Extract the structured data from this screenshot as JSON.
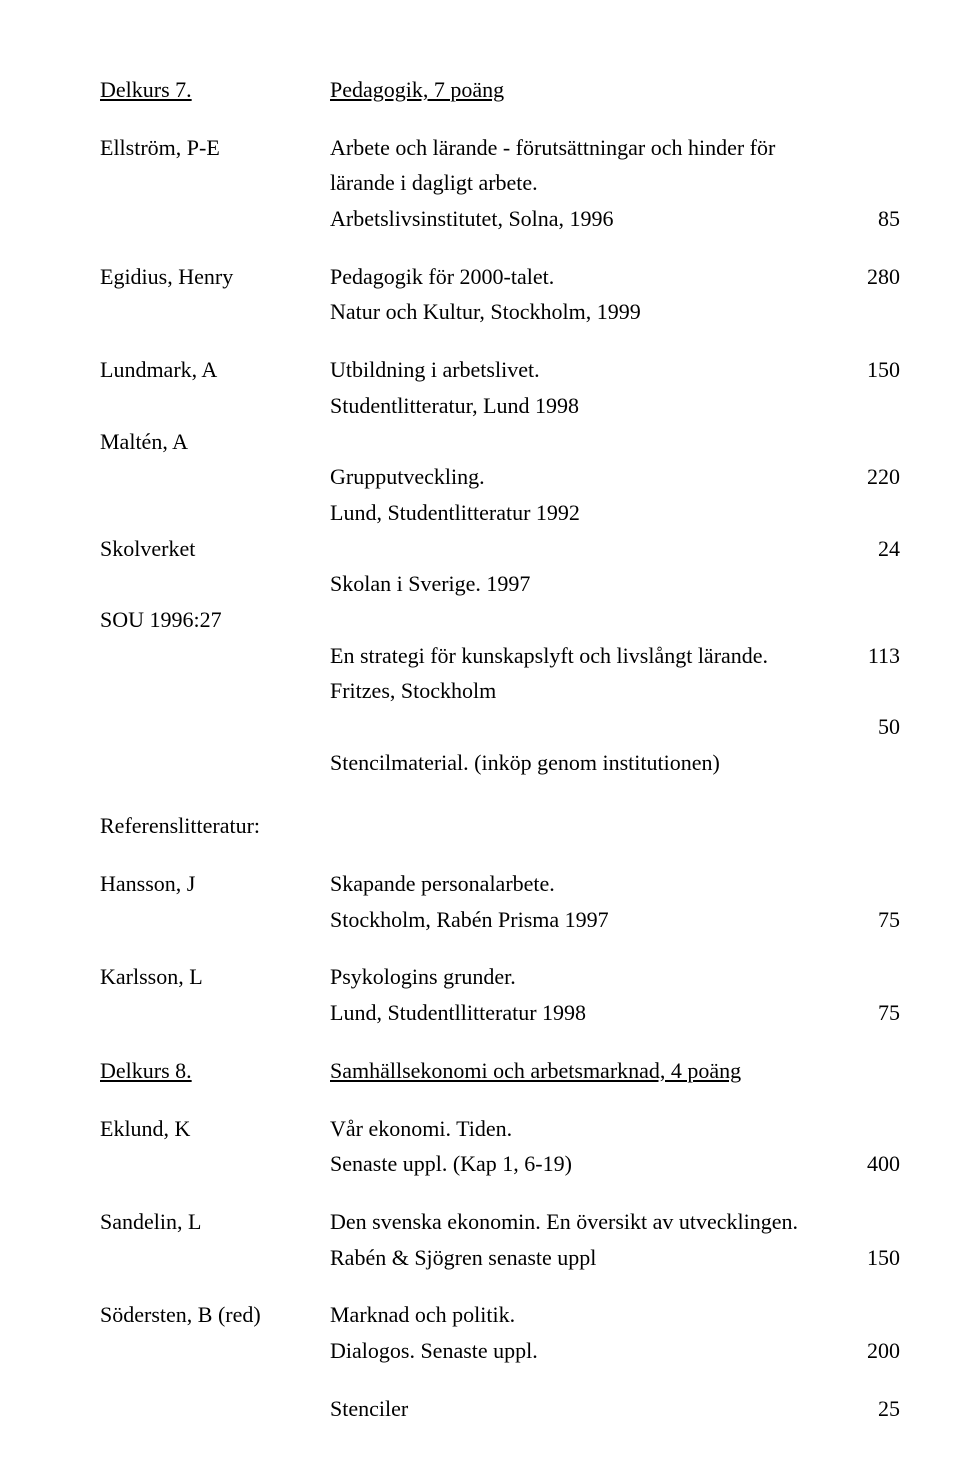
{
  "r": [
    {
      "left": "Delkurs 7.",
      "left_u": true,
      "mid": "Pedagogik, 7 poäng",
      "mid_u": true,
      "num": "",
      "gap": ""
    },
    {
      "left": "Ellström, P-E",
      "mid": "Arbete och lärande - förutsättningar och hinder för",
      "num": "",
      "gap": "gap"
    },
    {
      "left": "",
      "mid": "lärande i dagligt arbete.",
      "num": ""
    },
    {
      "left": "",
      "mid": "Arbetslivsinstitutet, Solna, 1996",
      "num": "85"
    },
    {
      "left": "Egidius, Henry",
      "mid": "Pedagogik för 2000-talet.",
      "num": "280",
      "gap": "gap"
    },
    {
      "left": "",
      "mid": "Natur och Kultur, Stockholm, 1999",
      "num": ""
    },
    {
      "left": "Lundmark, A",
      "mid": "Utbildning i arbetslivet.",
      "num": "150",
      "gap": "gap"
    },
    {
      "left": "",
      "mid": "Studentlitteratur, Lund 1998",
      "num": ""
    },
    {
      "left": "Maltén, A",
      "mid": "",
      "num": ""
    },
    {
      "left": "",
      "mid": "Grupputveckling.",
      "num": "220"
    },
    {
      "left": "",
      "mid": "Lund, Studentlitteratur 1992",
      "num": ""
    },
    {
      "left": "Skolverket",
      "mid": "",
      "num": "24"
    },
    {
      "left": "",
      "mid": "Skolan i Sverige. 1997",
      "num": ""
    },
    {
      "left": "SOU 1996:27",
      "mid": "",
      "num": ""
    },
    {
      "left": "",
      "mid": "En strategi för kunskapslyft och livslångt lärande.",
      "num": "113"
    },
    {
      "left": "",
      "mid": "Fritzes, Stockholm",
      "num": ""
    },
    {
      "left": "",
      "mid": "",
      "num": "50"
    },
    {
      "left": "",
      "mid": "Stencilmaterial. (inköp genom institutionen)",
      "num": ""
    },
    {
      "left": "Referenslitteratur:",
      "mid": "",
      "num": "",
      "gap": "gap-lg"
    },
    {
      "left": "Hansson, J",
      "mid": "Skapande personalarbete.",
      "num": "",
      "gap": "gap"
    },
    {
      "left": "",
      "mid": "Stockholm, Rabén Prisma 1997",
      "num": "75"
    },
    {
      "left": "Karlsson, L",
      "mid": "Psykologins grunder.",
      "num": "",
      "gap": "gap"
    },
    {
      "left": "",
      "mid": "Lund, Studentllitteratur 1998",
      "num": "75"
    },
    {
      "left": "Delkurs 8.",
      "left_u": true,
      "mid": "Samhällsekonomi och arbetsmarknad, 4 poäng",
      "mid_u": true,
      "num": "",
      "gap": "gap"
    },
    {
      "left": "Eklund, K",
      "mid": "Vår ekonomi. Tiden.",
      "num": "",
      "gap": "gap"
    },
    {
      "left": "",
      "mid": "Senaste uppl. (Kap 1, 6-19)",
      "num": "400"
    },
    {
      "left": "Sandelin, L",
      "mid": "Den svenska ekonomin. En översikt av utvecklingen.",
      "num": "",
      "gap": "gap"
    },
    {
      "left": "",
      "mid": "Rabén & Sjögren senaste uppl",
      "num": "150"
    },
    {
      "left": "Södersten, B (red)",
      "mid": "Marknad och politik.",
      "num": "",
      "gap": "gap"
    },
    {
      "left": "",
      "mid": "Dialogos. Senaste uppl.",
      "num": "200"
    },
    {
      "left": "",
      "mid": "Stenciler",
      "num": "25",
      "gap": "gap"
    }
  ]
}
